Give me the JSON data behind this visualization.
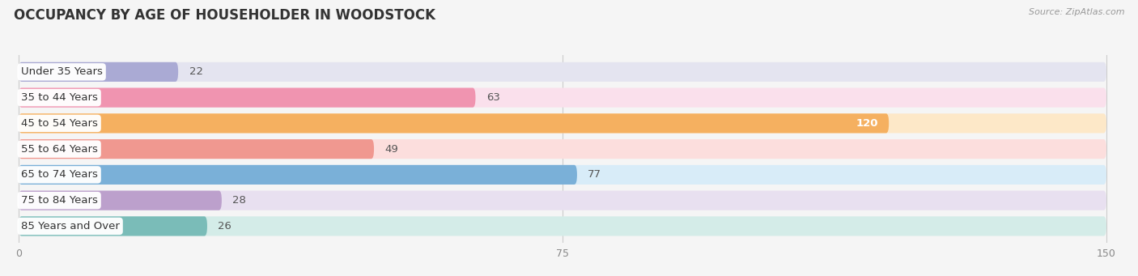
{
  "title": "OCCUPANCY BY AGE OF HOUSEHOLDER IN WOODSTOCK",
  "source": "Source: ZipAtlas.com",
  "categories": [
    "Under 35 Years",
    "35 to 44 Years",
    "45 to 54 Years",
    "55 to 64 Years",
    "65 to 74 Years",
    "75 to 84 Years",
    "85 Years and Over"
  ],
  "values": [
    22,
    63,
    120,
    49,
    77,
    28,
    26
  ],
  "bar_colors": [
    "#aaaad4",
    "#f094b0",
    "#f5b060",
    "#f09890",
    "#7ab0d8",
    "#bca0cc",
    "#7abcb8"
  ],
  "bar_bg_colors": [
    "#e4e4f0",
    "#fae0ec",
    "#fde8c8",
    "#fcdedd",
    "#d8ecf8",
    "#e8e0f0",
    "#d4ece8"
  ],
  "xlim": [
    0,
    150
  ],
  "xticks": [
    0,
    75,
    150
  ],
  "label_fontsize": 9.5,
  "title_fontsize": 12,
  "value_color_inside": "#ffffff",
  "value_color_outside": "#555555",
  "background_color": "#f5f5f5",
  "bar_bg_row_colors": [
    "#f0f0f0",
    "#f0f0f0"
  ]
}
